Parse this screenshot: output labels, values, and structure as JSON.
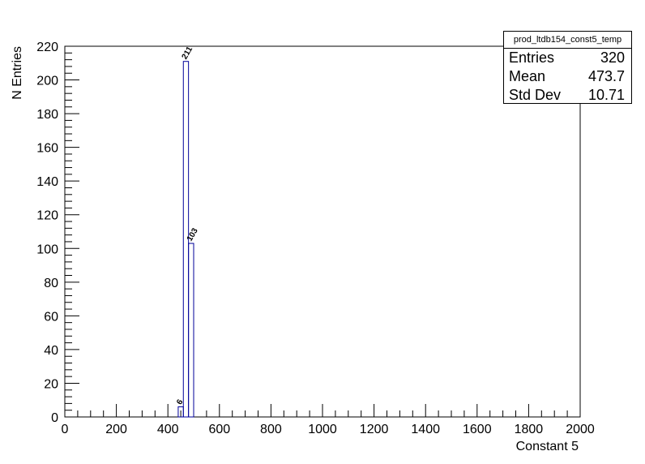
{
  "chart_data": {
    "type": "bar",
    "histogram_name": "prod_ltdb154_const5_temp",
    "xlabel": "Constant 5",
    "ylabel": "N Entries",
    "xlim": [
      0,
      2000
    ],
    "ylim": [
      0,
      220
    ],
    "bin_width": 20,
    "bins": [
      {
        "x_low": 440,
        "x_high": 460,
        "value": 6
      },
      {
        "x_low": 460,
        "x_high": 480,
        "value": 211
      },
      {
        "x_low": 480,
        "x_high": 500,
        "value": 103
      }
    ],
    "x_ticks": [
      "0",
      "200",
      "400",
      "600",
      "800",
      "1000",
      "1200",
      "1400",
      "1600",
      "1800",
      "2000"
    ],
    "y_ticks": [
      "0",
      "20",
      "40",
      "60",
      "80",
      "100",
      "120",
      "140",
      "160",
      "180",
      "200",
      "220"
    ],
    "line_color": "#000099",
    "grid": false,
    "legend_placement": "top-right"
  },
  "stats": {
    "title": "prod_ltdb154_const5_temp",
    "entries_label": "Entries",
    "entries_value": "320",
    "mean_label": "Mean",
    "mean_value": "473.7",
    "stddev_label": "Std Dev",
    "stddev_value": "10.71"
  }
}
